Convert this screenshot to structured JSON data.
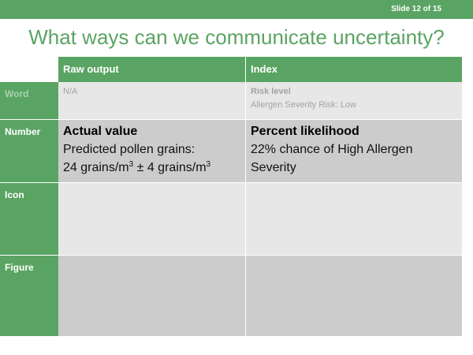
{
  "slide": {
    "number_label": "Slide 12 of 15",
    "title": "What ways can we communicate uncertainty?"
  },
  "table": {
    "columns": [
      "Raw output",
      "Index"
    ],
    "rows": {
      "word": {
        "label": "Word",
        "raw": "N/A",
        "index_heading": "Risk level",
        "index_text": "Allergen Severity Risk: Low"
      },
      "number": {
        "label": "Number",
        "raw_heading": "Actual value",
        "raw_line1": "Predicted pollen grains:",
        "raw_line2_value": "24 grains/m",
        "raw_line2_exp": "3",
        "raw_line2_pm": " ± 4 grains/m",
        "raw_line2_exp2": "3",
        "index_heading": "Percent likelihood",
        "index_text": "22% chance of High Allergen Severity"
      },
      "icon": {
        "label": "Icon"
      },
      "figure": {
        "label": "Figure"
      }
    }
  },
  "colors": {
    "accent": "#5aa463",
    "cell_light": "#e7e7e7",
    "cell_dark": "#cccccc"
  }
}
